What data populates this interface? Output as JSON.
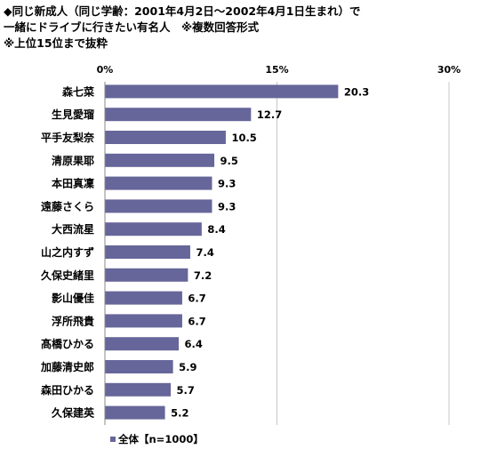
{
  "chart_data": {
    "type": "bar",
    "orientation": "horizontal",
    "title": [
      "◆同じ新成人（同じ学齢：2001年4月2日～2002年4月1日生まれ）で",
      "一緒にドライブに行きたい有名人　※複数回答形式"
    ],
    "subtitle": "※上位15位まで抜粋",
    "categories": [
      "森七菜",
      "生見愛瑠",
      "平手友梨奈",
      "清原果耶",
      "本田真凜",
      "遠藤さくら",
      "大西流星",
      "山之内すず",
      "久保史緒里",
      "影山優佳",
      "浮所飛貴",
      "髙橋ひかる",
      "加藤清史郎",
      "森田ひかる",
      "久保建英"
    ],
    "series": [
      {
        "name": "全体【n=1000】",
        "values": [
          20.3,
          12.7,
          10.5,
          9.5,
          9.3,
          9.3,
          8.4,
          7.4,
          7.2,
          6.7,
          6.7,
          6.4,
          5.9,
          5.7,
          5.2
        ],
        "color": "#66669a"
      }
    ],
    "xlim": [
      0,
      30
    ],
    "xticks": [
      "0%",
      "15%",
      "30%"
    ],
    "grid": true,
    "legend_position": "bottom-left"
  }
}
